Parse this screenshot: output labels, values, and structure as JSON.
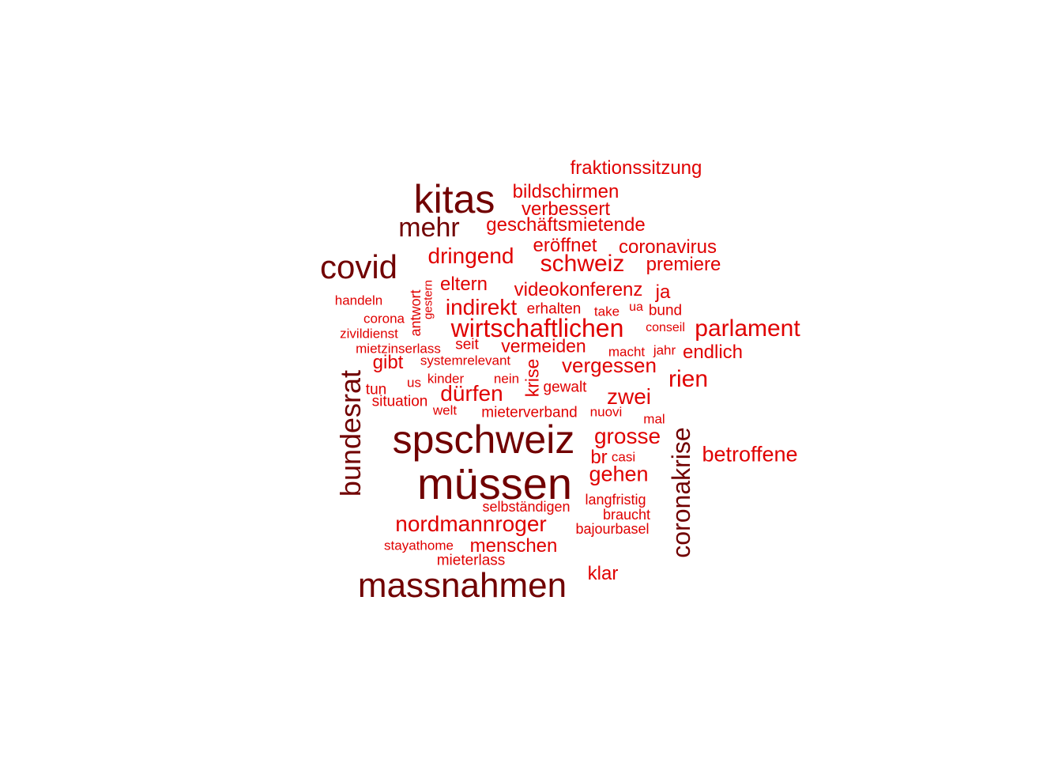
{
  "colors": {
    "high_frequency": "#710000",
    "low_frequency": "#e00000",
    "background": "#ffffff"
  },
  "words": [
    {
      "text": "müssen",
      "tier": "dark"
    },
    {
      "text": "spschweiz",
      "tier": "dark"
    },
    {
      "text": "kitas",
      "tier": "dark"
    },
    {
      "text": "massnahmen",
      "tier": "dark"
    },
    {
      "text": "covid",
      "tier": "dark"
    },
    {
      "text": "bundesrat",
      "tier": "dark"
    },
    {
      "text": "coronakrise",
      "tier": "dark"
    },
    {
      "text": "mehr",
      "tier": "dark"
    },
    {
      "text": "fraktionssitzung",
      "tier": "light"
    },
    {
      "text": "bildschirmen",
      "tier": "light"
    },
    {
      "text": "verbessert",
      "tier": "light"
    },
    {
      "text": "geschäftsmietende",
      "tier": "light"
    },
    {
      "text": "eröffnet",
      "tier": "light"
    },
    {
      "text": "coronavirus",
      "tier": "light"
    },
    {
      "text": "dringend",
      "tier": "light"
    },
    {
      "text": "schweiz",
      "tier": "light"
    },
    {
      "text": "premiere",
      "tier": "light"
    },
    {
      "text": "eltern",
      "tier": "light"
    },
    {
      "text": "videokonferenz",
      "tier": "light"
    },
    {
      "text": "ja",
      "tier": "light"
    },
    {
      "text": "handeln",
      "tier": "light"
    },
    {
      "text": "antwort",
      "tier": "light"
    },
    {
      "text": "gestern",
      "tier": "light"
    },
    {
      "text": "indirekt",
      "tier": "light"
    },
    {
      "text": "erhalten",
      "tier": "light"
    },
    {
      "text": "take",
      "tier": "light"
    },
    {
      "text": "ua",
      "tier": "light"
    },
    {
      "text": "bund",
      "tier": "light"
    },
    {
      "text": "corona",
      "tier": "light"
    },
    {
      "text": "wirtschaftlichen",
      "tier": "light"
    },
    {
      "text": "parlament",
      "tier": "light"
    },
    {
      "text": "zivildienst",
      "tier": "light"
    },
    {
      "text": "conseil",
      "tier": "light"
    },
    {
      "text": "mietzinserlass",
      "tier": "light"
    },
    {
      "text": "seit",
      "tier": "light"
    },
    {
      "text": "vermeiden",
      "tier": "light"
    },
    {
      "text": "macht",
      "tier": "light"
    },
    {
      "text": "jahr",
      "tier": "light"
    },
    {
      "text": "endlich",
      "tier": "light"
    },
    {
      "text": "gibt",
      "tier": "light"
    },
    {
      "text": "systemrelevant",
      "tier": "light"
    },
    {
      "text": "krise",
      "tier": "light"
    },
    {
      "text": "vergessen",
      "tier": "light"
    },
    {
      "text": "kinder",
      "tier": "light"
    },
    {
      "text": "nein",
      "tier": "light"
    },
    {
      "text": "rien",
      "tier": "light"
    },
    {
      "text": "tun",
      "tier": "light"
    },
    {
      "text": "us",
      "tier": "light"
    },
    {
      "text": "gewalt",
      "tier": "light"
    },
    {
      "text": "dürfen",
      "tier": "light"
    },
    {
      "text": "situation",
      "tier": "light"
    },
    {
      "text": "zwei",
      "tier": "light"
    },
    {
      "text": "welt",
      "tier": "light"
    },
    {
      "text": "mieterverband",
      "tier": "light"
    },
    {
      "text": "nuovi",
      "tier": "light"
    },
    {
      "text": "mal",
      "tier": "light"
    },
    {
      "text": "grosse",
      "tier": "light"
    },
    {
      "text": "br",
      "tier": "light"
    },
    {
      "text": "casi",
      "tier": "light"
    },
    {
      "text": "betroffene",
      "tier": "light"
    },
    {
      "text": "gehen",
      "tier": "light"
    },
    {
      "text": "langfristig",
      "tier": "light"
    },
    {
      "text": "selbständigen",
      "tier": "light"
    },
    {
      "text": "braucht",
      "tier": "light"
    },
    {
      "text": "nordmannroger",
      "tier": "light"
    },
    {
      "text": "bajourbasel",
      "tier": "light"
    },
    {
      "text": "stayathome",
      "tier": "light"
    },
    {
      "text": "menschen",
      "tier": "light"
    },
    {
      "text": "mieterlass",
      "tier": "light"
    },
    {
      "text": "klar",
      "tier": "light"
    }
  ]
}
